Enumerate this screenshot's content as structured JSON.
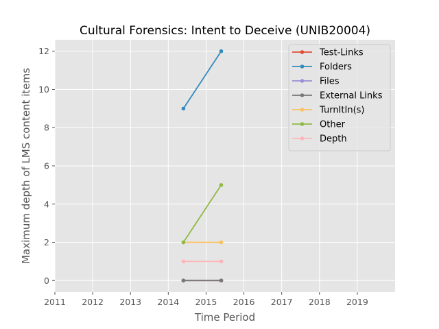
{
  "chart_data": {
    "type": "line",
    "title": "Cultural Forensics: Intent to Deceive (UNIB20004)",
    "xlabel": "Time Period",
    "ylabel": "Maximum depth of LMS content items",
    "xlim": [
      2011,
      2020
    ],
    "ylim": [
      -0.6,
      12.6
    ],
    "xticks": [
      2011,
      2012,
      2013,
      2014,
      2015,
      2016,
      2017,
      2018,
      2019
    ],
    "yticks": [
      0,
      2,
      4,
      6,
      8,
      10,
      12
    ],
    "grid": true,
    "legend": "top-right",
    "x": [
      2014.4,
      2015.4
    ],
    "series": [
      {
        "name": "Test-Links",
        "color": "#e24a33",
        "values": [
          0,
          0
        ]
      },
      {
        "name": "Folders",
        "color": "#348abd",
        "values": [
          9,
          12
        ]
      },
      {
        "name": "Files",
        "color": "#988ed5",
        "values": [
          0,
          0
        ]
      },
      {
        "name": "External Links",
        "color": "#777777",
        "values": [
          0,
          0
        ]
      },
      {
        "name": "TurnItIn(s)",
        "color": "#fbc15e",
        "values": [
          2,
          2
        ]
      },
      {
        "name": "Other",
        "color": "#8eba42",
        "values": [
          2,
          5
        ]
      },
      {
        "name": "Depth",
        "color": "#ffb5b8",
        "values": [
          1,
          1
        ]
      }
    ]
  }
}
